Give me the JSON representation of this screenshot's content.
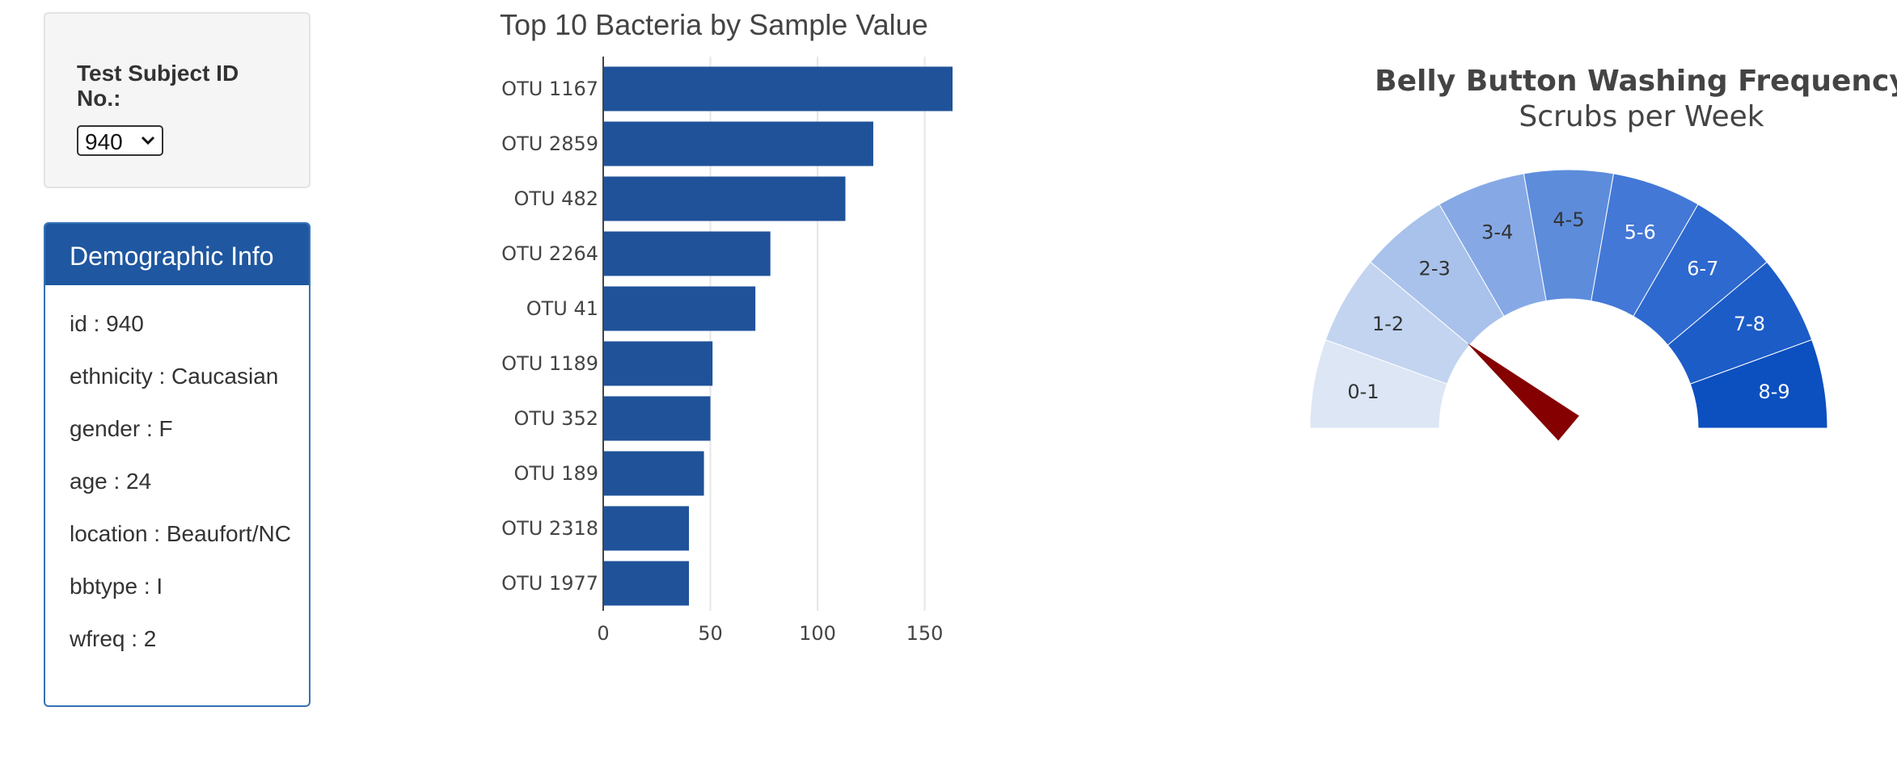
{
  "selector": {
    "label": "Test Subject ID No.:",
    "selected_value": "940"
  },
  "demographics": {
    "title": "Demographic Info",
    "items": [
      "id : 940",
      "ethnicity : Caucasian",
      "gender : F",
      "age : 24",
      "location : Beaufort/NC",
      "bbtype : I",
      "wfreq : 2"
    ]
  },
  "chart_data": [
    {
      "type": "bar",
      "orientation": "horizontal",
      "title": "Top 10 Bacteria by Sample Value",
      "categories": [
        "OTU 1167",
        "OTU 2859",
        "OTU 482",
        "OTU 2264",
        "OTU 41",
        "OTU 1189",
        "OTU 352",
        "OTU 189",
        "OTU 2318",
        "OTU 1977"
      ],
      "values": [
        163,
        126,
        113,
        78,
        71,
        51,
        50,
        47,
        40,
        40
      ],
      "xlim": [
        0,
        163
      ],
      "xticks": [
        0,
        50,
        100,
        150
      ],
      "grid": true,
      "color": "#1f5299"
    },
    {
      "type": "gauge",
      "title": "Belly Button Washing Frequency",
      "subtitle": "Scrubs per Week",
      "range": [
        0,
        9
      ],
      "value": 2,
      "segments": [
        {
          "label": "0-1",
          "color": "#dce6f5",
          "text_color": "#333333"
        },
        {
          "label": "1-2",
          "color": "#c2d4f0",
          "text_color": "#333333"
        },
        {
          "label": "2-3",
          "color": "#a8c2eb",
          "text_color": "#333333"
        },
        {
          "label": "3-4",
          "color": "#86a9e6",
          "text_color": "#333333"
        },
        {
          "label": "4-5",
          "color": "#5d8cdb",
          "text_color": "#333333"
        },
        {
          "label": "5-6",
          "color": "#4378d6",
          "text_color": "#ffffff"
        },
        {
          "label": "6-7",
          "color": "#2e69cf",
          "text_color": "#ffffff"
        },
        {
          "label": "7-8",
          "color": "#1c5cc7",
          "text_color": "#ffffff"
        },
        {
          "label": "8-9",
          "color": "#0c4fbf",
          "text_color": "#ffffff"
        }
      ],
      "needle_color": "#850000"
    }
  ]
}
